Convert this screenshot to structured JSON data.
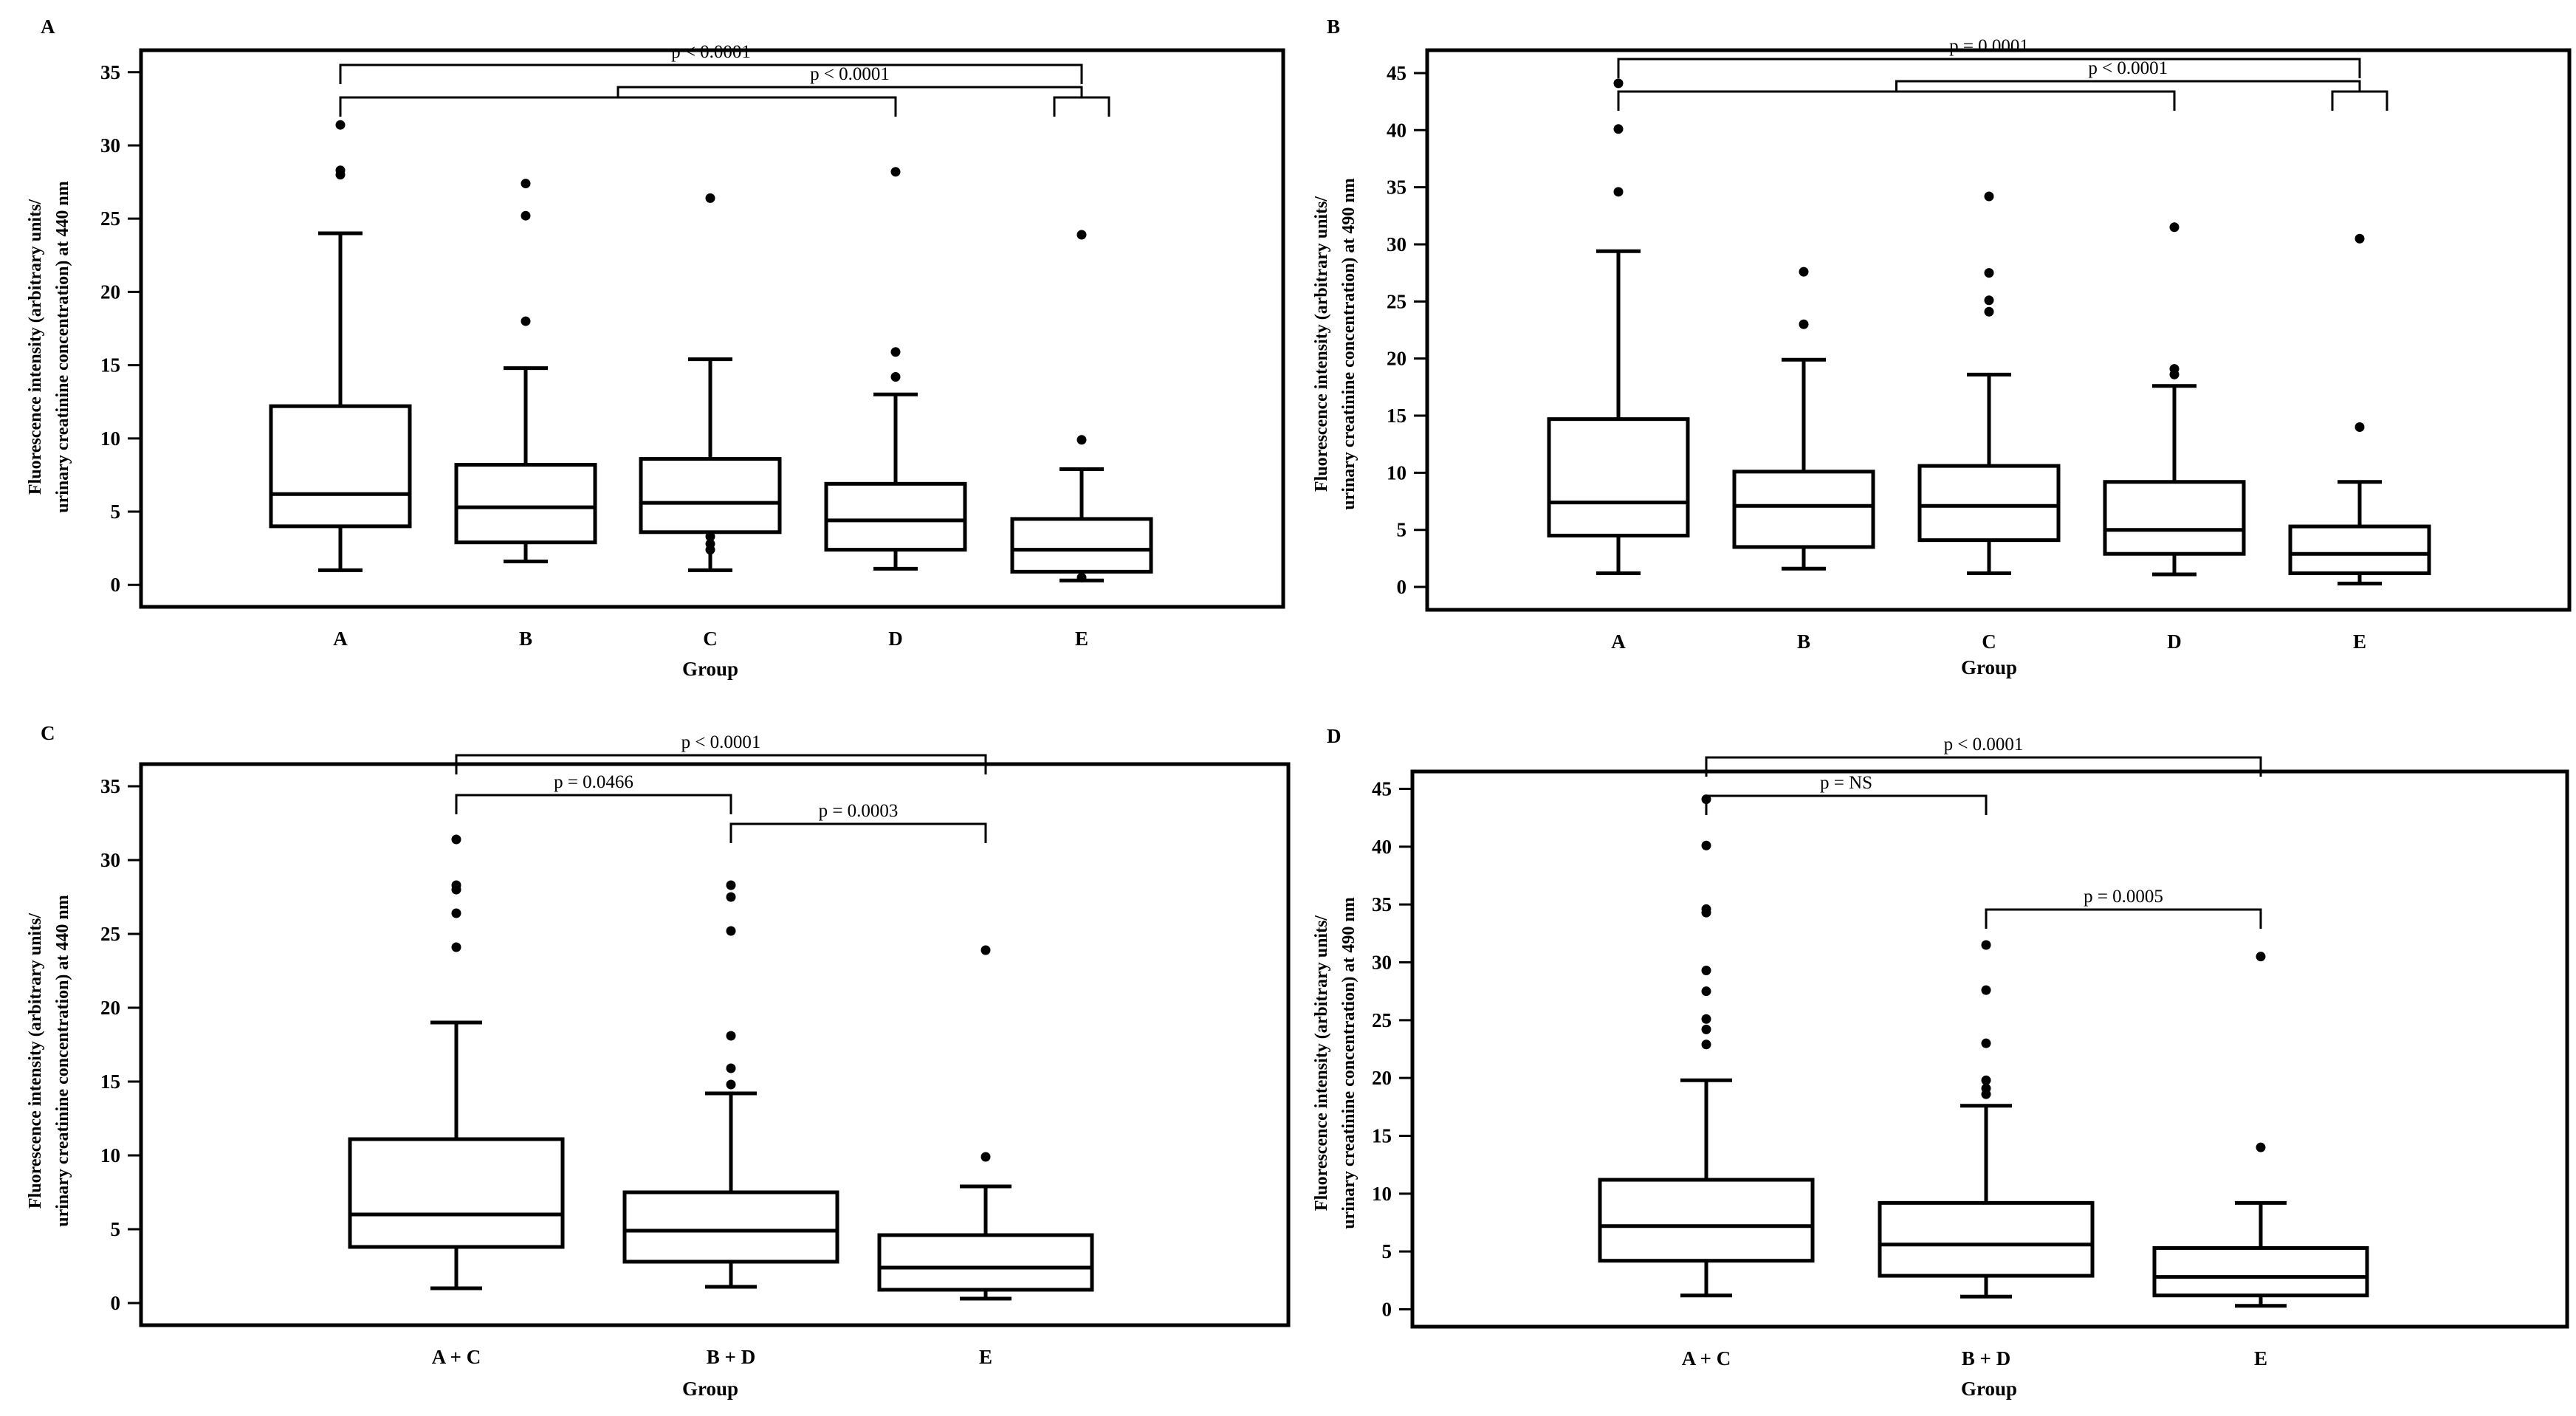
{
  "chart_data": [
    {
      "panel": "A",
      "type": "box",
      "xlabel": "Group",
      "ylabel_lines": [
        "Fluorescence intensity (arbitrary units/",
        "urinary creatinine concentration) at 440 nm"
      ],
      "ylim": [
        -1.5,
        36.5
      ],
      "yticks": [
        0,
        5,
        10,
        15,
        20,
        25,
        30,
        35
      ],
      "categories": [
        "A",
        "B",
        "C",
        "D",
        "E"
      ],
      "series": [
        {
          "name": "A",
          "min": 1.0,
          "q1": 4.0,
          "median": 6.2,
          "q3": 12.2,
          "max": 24.0,
          "outliers": [
            28.0,
            28.3,
            31.4
          ]
        },
        {
          "name": "B",
          "min": 1.6,
          "q1": 2.9,
          "median": 5.3,
          "q3": 8.2,
          "max": 14.8,
          "outliers": [
            18.0,
            25.2,
            27.4
          ]
        },
        {
          "name": "C",
          "min": 1.0,
          "q1": 3.6,
          "median": 5.6,
          "q3": 8.6,
          "max": 15.4,
          "outliers": [
            2.4,
            2.8,
            3.3,
            26.4
          ]
        },
        {
          "name": "D",
          "min": 1.1,
          "q1": 2.4,
          "median": 4.4,
          "q3": 6.9,
          "max": 13.0,
          "outliers": [
            14.2,
            15.9,
            28.2
          ]
        },
        {
          "name": "E",
          "min": 0.3,
          "q1": 0.9,
          "median": 2.4,
          "q3": 4.5,
          "max": 7.9,
          "outliers": [
            0.5,
            9.9,
            23.9
          ]
        }
      ],
      "comparisons": [
        {
          "label": "p < 0.0001",
          "type": "simple",
          "from": 0,
          "to": 4
        },
        {
          "label": "p < 0.0001",
          "type": "nested",
          "left": [
            0,
            3
          ],
          "right": [
            4,
            4
          ]
        }
      ]
    },
    {
      "panel": "B",
      "type": "box",
      "xlabel": "Group",
      "ylabel_lines": [
        "Fluorescence intensity (arbitrary units/",
        "urinary creatinine concentration) at 490 nm"
      ],
      "ylim": [
        -2.0,
        47.0
      ],
      "yticks": [
        0,
        5,
        10,
        15,
        20,
        25,
        30,
        35,
        40,
        45
      ],
      "categories": [
        "A",
        "B",
        "C",
        "D",
        "E"
      ],
      "series": [
        {
          "name": "A",
          "min": 1.2,
          "q1": 4.5,
          "median": 7.4,
          "q3": 14.7,
          "max": 29.4,
          "outliers": [
            34.6,
            40.1,
            44.1
          ]
        },
        {
          "name": "B",
          "min": 1.6,
          "q1": 3.5,
          "median": 7.1,
          "q3": 10.1,
          "max": 19.9,
          "outliers": [
            23.0,
            27.6
          ]
        },
        {
          "name": "C",
          "min": 1.2,
          "q1": 4.1,
          "median": 7.1,
          "q3": 10.6,
          "max": 18.6,
          "outliers": [
            24.1,
            25.1,
            27.5,
            34.2
          ]
        },
        {
          "name": "D",
          "min": 1.1,
          "q1": 2.9,
          "median": 5.0,
          "q3": 9.2,
          "max": 17.6,
          "outliers": [
            18.6,
            19.1,
            31.5
          ]
        },
        {
          "name": "E",
          "min": 0.3,
          "q1": 1.2,
          "median": 2.9,
          "q3": 5.3,
          "max": 9.2,
          "outliers": [
            14.0,
            30.5
          ]
        }
      ],
      "comparisons": [
        {
          "label": "p = 0.0001",
          "type": "simple",
          "from": 0,
          "to": 4
        },
        {
          "label": "p < 0.0001",
          "type": "nested",
          "left": [
            0,
            3
          ],
          "right": [
            4,
            4
          ]
        }
      ]
    },
    {
      "panel": "C",
      "type": "box",
      "xlabel": "Group",
      "ylabel_lines": [
        "Fluorescence intensity (arbitrary units/",
        "urinary creatinine concentration) at 440 nm"
      ],
      "ylim": [
        -1.5,
        36.5
      ],
      "yticks": [
        0,
        5,
        10,
        15,
        20,
        25,
        30,
        35
      ],
      "categories": [
        "A + C",
        "B + D",
        "E"
      ],
      "series": [
        {
          "name": "A + C",
          "min": 1.0,
          "q1": 3.8,
          "median": 6.0,
          "q3": 11.1,
          "max": 19.0,
          "outliers": [
            24.1,
            26.4,
            28.0,
            28.3,
            31.4
          ]
        },
        {
          "name": "B + D",
          "min": 1.1,
          "q1": 2.8,
          "median": 4.9,
          "q3": 7.5,
          "max": 14.2,
          "outliers": [
            14.8,
            15.9,
            18.1,
            25.2,
            27.5,
            28.3
          ]
        },
        {
          "name": "E",
          "min": 0.3,
          "q1": 0.9,
          "median": 2.4,
          "q3": 4.6,
          "max": 7.9,
          "outliers": [
            9.9,
            23.9
          ]
        }
      ],
      "comparisons": [
        {
          "label": "p < 0.0001",
          "type": "simple",
          "from": 0,
          "to": 2
        },
        {
          "label": "p = 0.0466",
          "type": "simple",
          "from": 0,
          "to": 1
        },
        {
          "label": "p = 0.0003",
          "type": "simple",
          "from": 1,
          "to": 2
        }
      ]
    },
    {
      "panel": "D",
      "type": "box",
      "xlabel": "Group",
      "ylabel_lines": [
        "Fluorescence intensity (arbitrary units/",
        "urinary creatinine concentration) at 490 nm"
      ],
      "ylim": [
        -1.5,
        46.5
      ],
      "yticks": [
        0,
        5,
        10,
        15,
        20,
        25,
        30,
        35,
        40,
        45
      ],
      "categories": [
        "A + C",
        "B + D",
        "E"
      ],
      "series": [
        {
          "name": "A + C",
          "min": 1.2,
          "q1": 4.2,
          "median": 7.2,
          "q3": 11.2,
          "max": 19.8,
          "outliers": [
            22.9,
            24.2,
            25.1,
            27.5,
            29.3,
            34.3,
            34.6,
            40.1,
            44.1
          ]
        },
        {
          "name": "B + D",
          "min": 1.1,
          "q1": 2.9,
          "median": 5.6,
          "q3": 9.2,
          "max": 17.6,
          "outliers": [
            18.6,
            19.1,
            19.8,
            23.0,
            27.6,
            31.5
          ]
        },
        {
          "name": "E",
          "min": 0.3,
          "q1": 1.2,
          "median": 2.8,
          "q3": 5.3,
          "max": 9.2,
          "outliers": [
            14.0,
            30.5
          ]
        }
      ],
      "comparisons": [
        {
          "label": "p < 0.0001",
          "type": "simple",
          "from": 0,
          "to": 2
        },
        {
          "label": "p = NS",
          "type": "simple",
          "from": 0,
          "to": 1
        },
        {
          "label": "p = 0.0005",
          "type": "simple",
          "from": 1,
          "to": 2
        }
      ]
    }
  ]
}
